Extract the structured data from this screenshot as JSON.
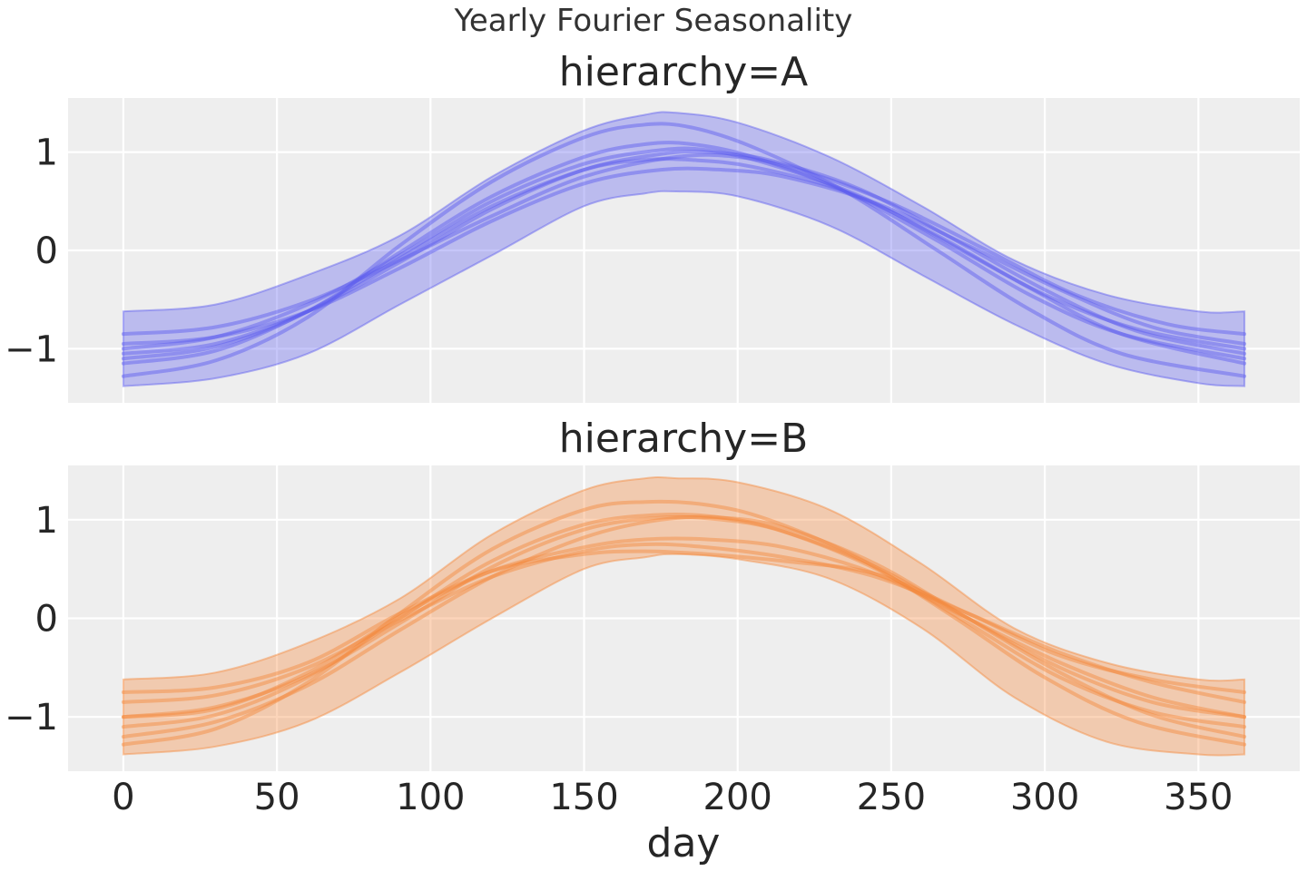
{
  "figure": {
    "suptitle": "Yearly Fourier Seasonality",
    "xlabel": "day"
  },
  "chart_data": [
    {
      "type": "line",
      "title": "hierarchy=A",
      "xlabel": "",
      "ylabel": "",
      "xlim": [
        -18,
        383
      ],
      "ylim": [
        -1.55,
        1.55
      ],
      "xticks": [
        0,
        50,
        100,
        150,
        200,
        250,
        300,
        350
      ],
      "xtick_labels": [],
      "yticks": [
        -1,
        0,
        1
      ],
      "ytick_labels": [
        "−1",
        "0",
        "1"
      ],
      "grid": true,
      "color": "#5b5bee",
      "band_color": "#5b5bee",
      "band": {
        "x": [
          0,
          30,
          60,
          90,
          120,
          150,
          170,
          180,
          200,
          230,
          260,
          290,
          320,
          350,
          365
        ],
        "lower": [
          -1.38,
          -1.3,
          -1.05,
          -0.55,
          -0.05,
          0.45,
          0.58,
          0.6,
          0.55,
          0.25,
          -0.25,
          -0.75,
          -1.15,
          -1.35,
          -1.38
        ],
        "upper": [
          -0.62,
          -0.55,
          -0.25,
          0.15,
          0.75,
          1.22,
          1.38,
          1.4,
          1.3,
          0.95,
          0.45,
          -0.1,
          -0.45,
          -0.62,
          -0.62
        ]
      },
      "series": [
        {
          "values": [
            [
              0,
              -1.0
            ],
            [
              30,
              -0.88
            ],
            [
              60,
              -0.55
            ],
            [
              90,
              -0.05
            ],
            [
              120,
              0.5
            ],
            [
              150,
              0.88
            ],
            [
              175,
              1.02
            ],
            [
              190,
              1.02
            ],
            [
              210,
              0.88
            ],
            [
              240,
              0.55
            ],
            [
              270,
              0.05
            ],
            [
              300,
              -0.45
            ],
            [
              330,
              -0.8
            ],
            [
              365,
              -1.0
            ]
          ]
        },
        {
          "values": [
            [
              0,
              -1.1
            ],
            [
              30,
              -0.98
            ],
            [
              60,
              -0.62
            ],
            [
              90,
              -0.02
            ],
            [
              120,
              0.55
            ],
            [
              150,
              0.95
            ],
            [
              170,
              1.08
            ],
            [
              185,
              1.08
            ],
            [
              205,
              0.95
            ],
            [
              235,
              0.6
            ],
            [
              265,
              0.1
            ],
            [
              295,
              -0.45
            ],
            [
              325,
              -0.85
            ],
            [
              365,
              -1.1
            ]
          ]
        },
        {
          "values": [
            [
              0,
              -1.28
            ],
            [
              30,
              -1.12
            ],
            [
              60,
              -0.68
            ],
            [
              90,
              0.05
            ],
            [
              120,
              0.7
            ],
            [
              150,
              1.15
            ],
            [
              170,
              1.28
            ],
            [
              185,
              1.25
            ],
            [
              205,
              1.05
            ],
            [
              235,
              0.6
            ],
            [
              265,
              0.0
            ],
            [
              295,
              -0.6
            ],
            [
              325,
              -1.05
            ],
            [
              365,
              -1.28
            ]
          ]
        },
        {
          "values": [
            [
              0,
              -0.85
            ],
            [
              30,
              -0.78
            ],
            [
              60,
              -0.52
            ],
            [
              90,
              -0.1
            ],
            [
              120,
              0.35
            ],
            [
              150,
              0.75
            ],
            [
              180,
              0.95
            ],
            [
              200,
              0.95
            ],
            [
              220,
              0.82
            ],
            [
              250,
              0.48
            ],
            [
              280,
              0.02
            ],
            [
              310,
              -0.45
            ],
            [
              340,
              -0.75
            ],
            [
              365,
              -0.85
            ]
          ]
        },
        {
          "values": [
            [
              0,
              -1.05
            ],
            [
              30,
              -0.95
            ],
            [
              60,
              -0.62
            ],
            [
              90,
              -0.12
            ],
            [
              120,
              0.42
            ],
            [
              150,
              0.82
            ],
            [
              175,
              0.98
            ],
            [
              190,
              1.0
            ],
            [
              210,
              0.92
            ],
            [
              240,
              0.62
            ],
            [
              270,
              0.12
            ],
            [
              300,
              -0.4
            ],
            [
              330,
              -0.82
            ],
            [
              365,
              -1.05
            ]
          ]
        },
        {
          "values": [
            [
              0,
              -1.15
            ],
            [
              30,
              -1.02
            ],
            [
              60,
              -0.62
            ],
            [
              90,
              -0.08
            ],
            [
              120,
              0.45
            ],
            [
              150,
              0.82
            ],
            [
              170,
              0.92
            ],
            [
              185,
              0.92
            ],
            [
              205,
              0.85
            ],
            [
              235,
              0.6
            ],
            [
              265,
              0.15
            ],
            [
              295,
              -0.38
            ],
            [
              325,
              -0.85
            ],
            [
              365,
              -1.15
            ]
          ]
        },
        {
          "values": [
            [
              0,
              -0.95
            ],
            [
              30,
              -0.88
            ],
            [
              60,
              -0.62
            ],
            [
              90,
              -0.18
            ],
            [
              120,
              0.3
            ],
            [
              150,
              0.68
            ],
            [
              175,
              0.82
            ],
            [
              195,
              0.82
            ],
            [
              215,
              0.75
            ],
            [
              245,
              0.48
            ],
            [
              275,
              0.05
            ],
            [
              305,
              -0.4
            ],
            [
              335,
              -0.78
            ],
            [
              365,
              -0.95
            ]
          ]
        }
      ]
    },
    {
      "type": "line",
      "title": "hierarchy=B",
      "xlabel": "day",
      "ylabel": "",
      "xlim": [
        -18,
        383
      ],
      "ylim": [
        -1.55,
        1.55
      ],
      "xticks": [
        0,
        50,
        100,
        150,
        200,
        250,
        300,
        350
      ],
      "xtick_labels": [
        "0",
        "50",
        "100",
        "150",
        "200",
        "250",
        "300",
        "350"
      ],
      "yticks": [
        -1,
        0,
        1
      ],
      "ytick_labels": [
        "−1",
        "0",
        "1"
      ],
      "grid": true,
      "color": "#f5883a",
      "band_color": "#f5883a",
      "band": {
        "x": [
          0,
          30,
          60,
          90,
          120,
          150,
          170,
          180,
          200,
          230,
          260,
          290,
          320,
          350,
          365
        ],
        "lower": [
          -1.38,
          -1.3,
          -1.05,
          -0.55,
          0.0,
          0.5,
          0.62,
          0.65,
          0.6,
          0.4,
          -0.1,
          -0.8,
          -1.25,
          -1.38,
          -1.38
        ],
        "upper": [
          -0.62,
          -0.55,
          -0.25,
          0.2,
          0.85,
          1.3,
          1.42,
          1.42,
          1.38,
          1.1,
          0.55,
          -0.1,
          -0.45,
          -0.62,
          -0.62
        ]
      },
      "series": [
        {
          "values": [
            [
              0,
              -1.0
            ],
            [
              30,
              -0.9
            ],
            [
              60,
              -0.58
            ],
            [
              90,
              -0.05
            ],
            [
              120,
              0.52
            ],
            [
              150,
              0.9
            ],
            [
              175,
              1.02
            ],
            [
              195,
              1.0
            ],
            [
              215,
              0.88
            ],
            [
              245,
              0.52
            ],
            [
              275,
              0.0
            ],
            [
              305,
              -0.5
            ],
            [
              335,
              -0.85
            ],
            [
              365,
              -1.0
            ]
          ]
        },
        {
          "values": [
            [
              0,
              -1.1
            ],
            [
              30,
              -0.98
            ],
            [
              60,
              -0.6
            ],
            [
              90,
              0.0
            ],
            [
              120,
              0.58
            ],
            [
              150,
              0.95
            ],
            [
              175,
              1.05
            ],
            [
              195,
              1.02
            ],
            [
              215,
              0.88
            ],
            [
              245,
              0.5
            ],
            [
              275,
              -0.05
            ],
            [
              305,
              -0.6
            ],
            [
              335,
              -0.95
            ],
            [
              365,
              -1.1
            ]
          ]
        },
        {
          "values": [
            [
              0,
              -1.28
            ],
            [
              30,
              -1.12
            ],
            [
              60,
              -0.65
            ],
            [
              90,
              0.05
            ],
            [
              120,
              0.7
            ],
            [
              150,
              1.1
            ],
            [
              170,
              1.18
            ],
            [
              190,
              1.15
            ],
            [
              210,
              1.0
            ],
            [
              240,
              0.6
            ],
            [
              270,
              0.02
            ],
            [
              300,
              -0.6
            ],
            [
              330,
              -1.05
            ],
            [
              365,
              -1.28
            ]
          ]
        },
        {
          "values": [
            [
              0,
              -0.85
            ],
            [
              30,
              -0.78
            ],
            [
              60,
              -0.5
            ],
            [
              90,
              -0.02
            ],
            [
              120,
              0.42
            ],
            [
              150,
              0.68
            ],
            [
              170,
              0.75
            ],
            [
              190,
              0.72
            ],
            [
              215,
              0.62
            ],
            [
              245,
              0.42
            ],
            [
              275,
              0.05
            ],
            [
              305,
              -0.35
            ],
            [
              335,
              -0.65
            ],
            [
              365,
              -0.85
            ]
          ]
        },
        {
          "values": [
            [
              0,
              -1.0
            ],
            [
              30,
              -0.92
            ],
            [
              60,
              -0.55
            ],
            [
              90,
              0.02
            ],
            [
              120,
              0.48
            ],
            [
              150,
              0.72
            ],
            [
              170,
              0.8
            ],
            [
              190,
              0.8
            ],
            [
              215,
              0.72
            ],
            [
              245,
              0.45
            ],
            [
              275,
              0.0
            ],
            [
              305,
              -0.45
            ],
            [
              335,
              -0.8
            ],
            [
              365,
              -1.0
            ]
          ]
        },
        {
          "values": [
            [
              0,
              -0.75
            ],
            [
              30,
              -0.7
            ],
            [
              60,
              -0.45
            ],
            [
              90,
              0.05
            ],
            [
              120,
              0.48
            ],
            [
              150,
              0.65
            ],
            [
              170,
              0.68
            ],
            [
              190,
              0.65
            ],
            [
              215,
              0.58
            ],
            [
              245,
              0.45
            ],
            [
              275,
              0.05
            ],
            [
              305,
              -0.38
            ],
            [
              335,
              -0.62
            ],
            [
              365,
              -0.75
            ]
          ]
        },
        {
          "values": [
            [
              0,
              -1.2
            ],
            [
              30,
              -1.05
            ],
            [
              60,
              -0.68
            ],
            [
              90,
              -0.12
            ],
            [
              120,
              0.42
            ],
            [
              150,
              0.82
            ],
            [
              175,
              1.0
            ],
            [
              195,
              1.02
            ],
            [
              215,
              0.92
            ],
            [
              245,
              0.55
            ],
            [
              275,
              0.0
            ],
            [
              305,
              -0.55
            ],
            [
              335,
              -0.98
            ],
            [
              365,
              -1.2
            ]
          ]
        }
      ]
    }
  ]
}
